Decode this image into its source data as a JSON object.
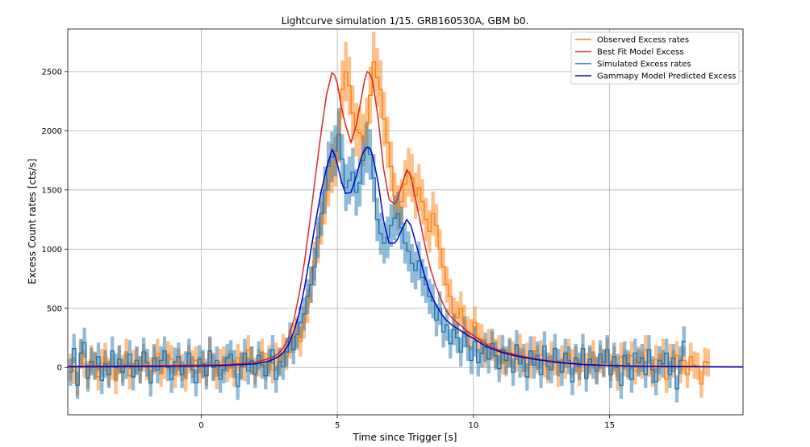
{
  "chart_data": {
    "type": "line",
    "title": "Lightcurve simulation 1/15. GRB160530A, GBM b0.",
    "xlabel": "Time since Trigger [s]",
    "ylabel": "Excess Count rates [cts/s]",
    "xlim": [
      -4.9,
      19.9
    ],
    "ylim": [
      -400,
      2860
    ],
    "xticks": [
      0,
      5,
      10,
      15
    ],
    "xtick_labels": [
      "0",
      "5",
      "10",
      "15"
    ],
    "yticks": [
      0,
      500,
      1000,
      1500,
      2000,
      2500
    ],
    "ytick_labels": [
      "0",
      "500",
      "1000",
      "1500",
      "2000",
      "2500"
    ],
    "grid": true,
    "legend_position": "top-right",
    "bin_width": 0.128,
    "x_start": -4.864,
    "series": [
      {
        "name": "Observed Excess rates",
        "color": "#ff7f0e",
        "style": "steps-with-errorbands",
        "values": [
          0,
          -25,
          -120,
          110,
          30,
          -60,
          70,
          20,
          -80,
          40,
          90,
          -40,
          10,
          -110,
          60,
          -10,
          120,
          -70,
          30,
          50,
          -20,
          80,
          10,
          -30,
          60,
          120,
          -50,
          20,
          100,
          70,
          -60,
          40,
          0,
          -90,
          70,
          30,
          60,
          -20,
          20,
          -40,
          130,
          10,
          -70,
          40,
          60,
          -10,
          30,
          -50,
          80,
          20,
          0,
          150,
          60,
          -30,
          40,
          120,
          10,
          70,
          -20,
          90,
          40,
          160,
          100,
          200,
          250,
          300,
          220,
          380,
          520,
          700,
          900,
          1050,
          1220,
          1400,
          1560,
          1680,
          1740,
          1950,
          2350,
          2500,
          2380,
          2150,
          2010,
          1980,
          1920,
          2050,
          2300,
          2580,
          2450,
          2350,
          2100,
          1900,
          1700,
          1450,
          1350,
          1400,
          1550,
          1650,
          1600,
          1450,
          1520,
          1400,
          1250,
          1150,
          1300,
          1200,
          1000,
          850,
          700,
          600,
          450,
          420,
          500,
          390,
          300,
          280,
          380,
          250,
          240,
          120,
          200,
          180,
          120,
          150,
          60,
          40,
          130,
          100,
          80,
          160,
          40,
          90,
          20,
          140,
          70,
          110,
          30,
          -20,
          100,
          50,
          -50,
          70,
          20,
          120,
          40,
          60,
          -40,
          80,
          10,
          50,
          110,
          -20,
          70,
          30,
          130,
          0,
          60,
          -80,
          90,
          40,
          10,
          100,
          -30,
          60,
          20,
          150,
          40,
          -50,
          70,
          0,
          120,
          -100,
          80,
          30,
          100,
          -20,
          60,
          -60,
          90,
          20,
          10,
          -140,
          50,
          40
        ]
      },
      {
        "name": "Best Fit Model Excess",
        "color": "#d62728",
        "style": "line",
        "x": [
          -4.9,
          -2,
          0,
          1,
          2,
          2.5,
          2.8,
          3.0,
          3.2,
          3.4,
          3.6,
          3.8,
          4.0,
          4.2,
          4.4,
          4.6,
          4.8,
          4.9,
          5.0,
          5.15,
          5.3,
          5.5,
          5.7,
          5.9,
          6.0,
          6.1,
          6.2,
          6.3,
          6.5,
          6.7,
          6.9,
          7.1,
          7.2,
          7.4,
          7.55,
          7.7,
          7.8,
          8.0,
          8.2,
          8.4,
          8.6,
          8.8,
          9.0,
          9.2,
          9.4,
          9.6,
          9.8,
          10.0,
          10.3,
          10.6,
          11.0,
          11.5,
          12.0,
          12.5,
          13.0,
          13.5,
          14,
          15,
          16,
          17,
          18,
          19,
          19.9
        ],
        "y": [
          10,
          15,
          20,
          25,
          45,
          75,
          110,
          160,
          250,
          400,
          620,
          900,
          1250,
          1620,
          1980,
          2300,
          2490,
          2470,
          2400,
          2200,
          2050,
          1900,
          2050,
          2300,
          2430,
          2500,
          2480,
          2420,
          2100,
          1680,
          1420,
          1380,
          1420,
          1560,
          1670,
          1620,
          1500,
          1280,
          1050,
          850,
          700,
          580,
          480,
          420,
          380,
          340,
          300,
          270,
          220,
          180,
          140,
          110,
          85,
          65,
          50,
          38,
          28,
          18,
          12,
          10,
          8,
          6,
          5
        ]
      },
      {
        "name": "Simulated Excess rates",
        "color": "#1f77b4",
        "style": "steps-with-errorbands",
        "values": [
          -40,
          160,
          -150,
          120,
          210,
          -90,
          50,
          10,
          90,
          -110,
          30,
          -60,
          140,
          0,
          70,
          -40,
          20,
          110,
          -80,
          60,
          -20,
          130,
          40,
          -130,
          80,
          -20,
          60,
          140,
          0,
          -100,
          50,
          90,
          -60,
          20,
          120,
          -20,
          -130,
          70,
          30,
          -70,
          140,
          0,
          60,
          -100,
          -20,
          80,
          110,
          30,
          -160,
          10,
          120,
          -30,
          60,
          -60,
          100,
          20,
          -70,
          40,
          150,
          -100,
          50,
          10,
          130,
          250,
          150,
          280,
          380,
          450,
          600,
          700,
          850,
          1100,
          1300,
          1500,
          1700,
          1780,
          1830,
          1970,
          1760,
          1520,
          1580,
          1650,
          1480,
          1560,
          1750,
          1860,
          1800,
          1600,
          1250,
          1130,
          1050,
          1100,
          1200,
          1260,
          1300,
          1180,
          1050,
          980,
          880,
          820,
          900,
          760,
          700,
          600,
          560,
          400,
          500,
          300,
          360,
          200,
          320,
          250,
          130,
          300,
          180,
          60,
          220,
          40,
          120,
          170,
          70,
          200,
          100,
          -10,
          150,
          60,
          120,
          -40,
          190,
          30,
          80,
          -80,
          140,
          20,
          100,
          -60,
          180,
          10,
          -20,
          160,
          40,
          -40,
          120,
          60,
          -120,
          80,
          10,
          160,
          -90,
          70,
          20,
          -30,
          110,
          40,
          150,
          -60,
          90,
          0,
          -150,
          100,
          30,
          -100,
          120,
          40,
          80,
          -60,
          150,
          -20,
          -120,
          60,
          30,
          120,
          -60,
          80,
          -180,
          60,
          220
        ]
      },
      {
        "name": "Gammapy Model Predicted Excess",
        "color": "#0000cc",
        "style": "line",
        "x": [
          -4.9,
          -2,
          0,
          1,
          2,
          2.5,
          2.8,
          3.0,
          3.2,
          3.4,
          3.6,
          3.8,
          4.0,
          4.2,
          4.4,
          4.6,
          4.8,
          4.9,
          5.0,
          5.15,
          5.3,
          5.5,
          5.7,
          5.9,
          6.0,
          6.1,
          6.2,
          6.3,
          6.5,
          6.7,
          6.9,
          7.1,
          7.2,
          7.4,
          7.55,
          7.7,
          7.8,
          8.0,
          8.2,
          8.4,
          8.6,
          8.8,
          9.0,
          9.2,
          9.4,
          9.6,
          9.8,
          10.0,
          10.3,
          10.6,
          11.0,
          11.5,
          12.0,
          12.5,
          13.0,
          13.5,
          14,
          15,
          16,
          17,
          18,
          19,
          19.9
        ],
        "y": [
          5,
          8,
          12,
          18,
          30,
          55,
          85,
          120,
          190,
          300,
          460,
          680,
          950,
          1230,
          1480,
          1680,
          1840,
          1800,
          1720,
          1570,
          1470,
          1480,
          1620,
          1790,
          1840,
          1860,
          1850,
          1790,
          1560,
          1240,
          1050,
          1050,
          1080,
          1180,
          1250,
          1200,
          1120,
          950,
          780,
          640,
          540,
          460,
          400,
          360,
          330,
          300,
          270,
          245,
          200,
          165,
          130,
          100,
          78,
          60,
          45,
          34,
          25,
          15,
          10,
          8,
          6,
          5,
          4
        ]
      }
    ]
  }
}
